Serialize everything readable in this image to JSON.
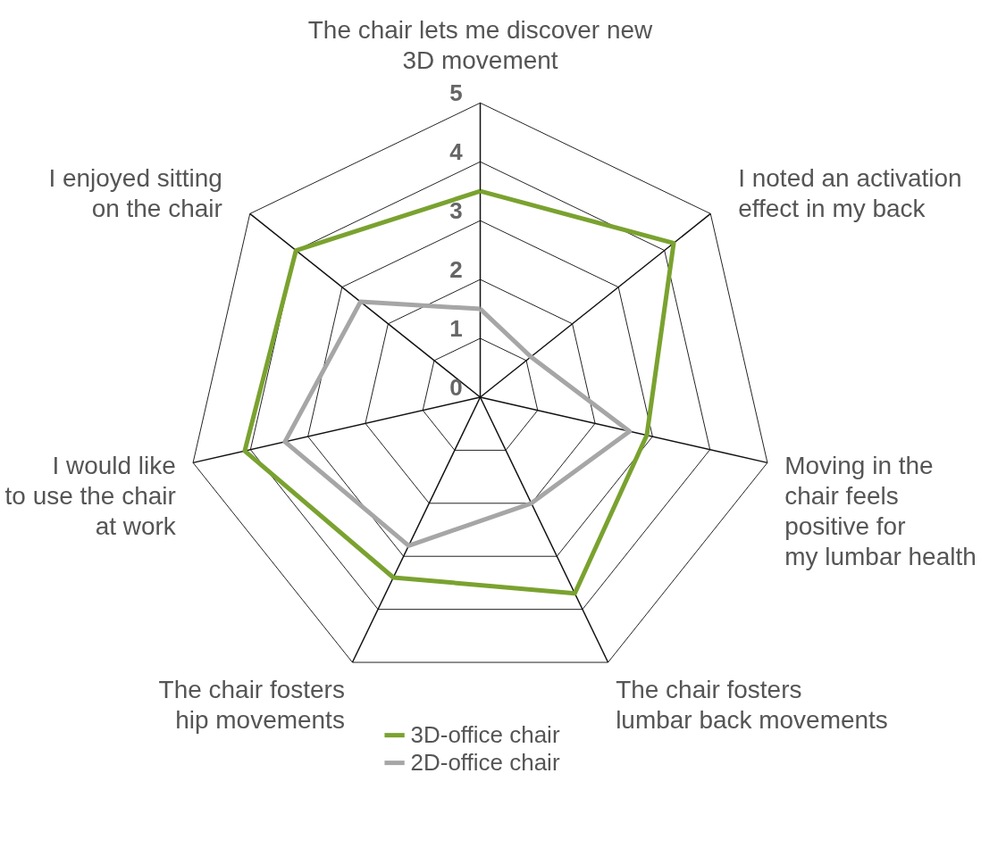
{
  "chart_data": {
    "type": "radar",
    "categories": [
      "The chair lets me discover new\n3D movement",
      "I noted an activation\neffect in my back",
      "Moving in the\nchair feels\npositive for\nmy lumbar health",
      "The chair fosters\nlumbar back movements",
      "The chair fosters\nhip movements",
      "I would like\nto use the chair\nat work",
      "I enjoyed sitting\non the chair"
    ],
    "series": [
      {
        "name": "3D-office chair",
        "color": "#7aa22f",
        "values": [
          3.5,
          4.2,
          2.9,
          3.7,
          3.4,
          4.1,
          4.0
        ]
      },
      {
        "name": "2D-office chair",
        "color": "#a6a6a6",
        "values": [
          1.5,
          1.1,
          2.6,
          2.0,
          2.8,
          3.4,
          2.6
        ]
      }
    ],
    "ylim": [
      0,
      5
    ],
    "yticks": [
      0,
      1,
      2,
      3,
      4,
      5
    ],
    "grid": true,
    "legend": "bottom"
  }
}
